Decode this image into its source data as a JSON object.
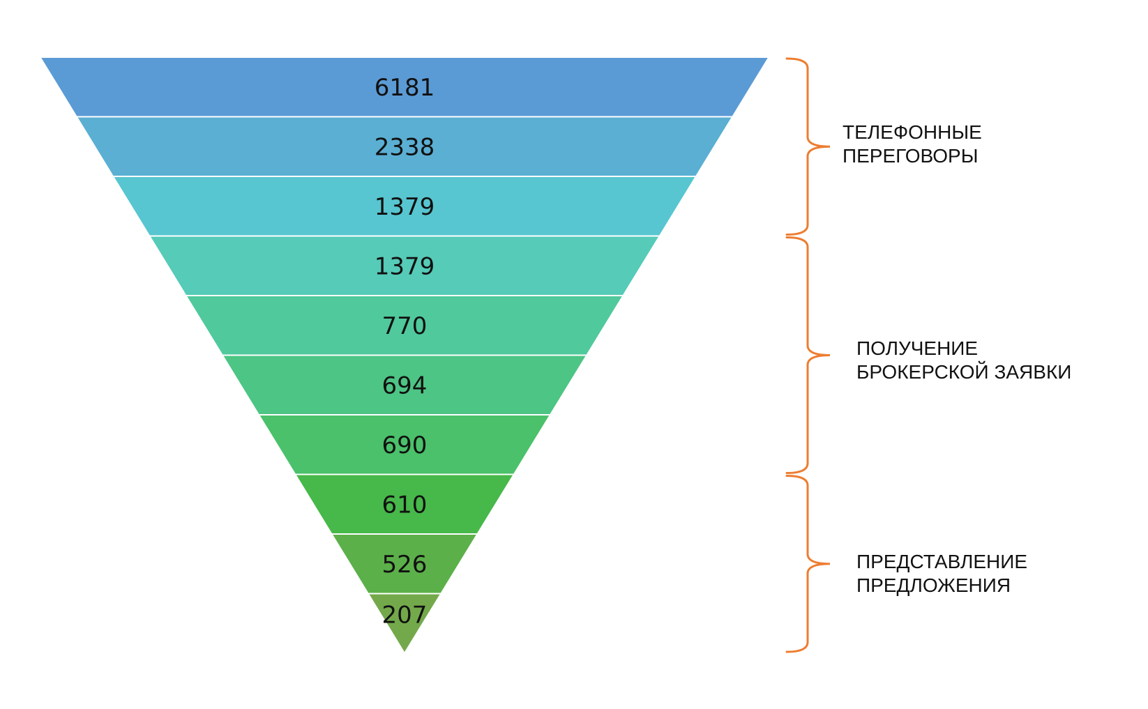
{
  "chart_data": {
    "type": "funnel",
    "title": "",
    "stages": [
      {
        "value": 6181,
        "label": "6181",
        "color": "#5B9BD5"
      },
      {
        "value": 2338,
        "label": "2338",
        "color": "#5AAFD3"
      },
      {
        "value": 1379,
        "label": "1379",
        "color": "#57C6D0"
      },
      {
        "value": 1379,
        "label": "1379",
        "color": "#55CBB8"
      },
      {
        "value": 770,
        "label": "770",
        "color": "#50C99D"
      },
      {
        "value": 694,
        "label": "694",
        "color": "#4DC584"
      },
      {
        "value": 690,
        "label": "690",
        "color": "#4AC16A"
      },
      {
        "value": 610,
        "label": "610",
        "color": "#47B84A"
      },
      {
        "value": 526,
        "label": "526",
        "color": "#5CB04A"
      },
      {
        "value": 207,
        "label": "207",
        "color": "#73A94B"
      }
    ],
    "groups": [
      {
        "line1": "ТЕЛЕФОННЫЕ",
        "line2": "ПЕРЕГОВОРЫ",
        "stages": [
          0,
          2
        ]
      },
      {
        "line1": "ПОЛУЧЕНИЕ",
        "line2": "БРОКЕРСКОЙ ЗАЯВКИ",
        "stages": [
          3,
          6
        ]
      },
      {
        "line1": "ПРЕДСТАВЛЕНИЕ",
        "line2": "ПРЕДЛОЖЕНИЯ",
        "stages": [
          7,
          9
        ]
      }
    ],
    "bracket_color": "#ED7D31"
  }
}
